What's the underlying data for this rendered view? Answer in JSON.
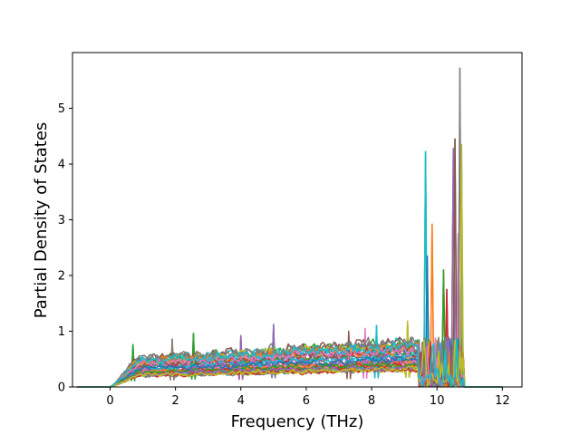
{
  "chart_data": {
    "type": "line",
    "title": "",
    "xlabel": "Frequency (THz)",
    "ylabel": "Partial Density of States",
    "xlim": [
      -1.15,
      12.6
    ],
    "ylim": [
      0,
      6.0
    ],
    "xticks": [
      0,
      2,
      4,
      6,
      8,
      10,
      12
    ],
    "yticks": [
      0,
      1,
      2,
      3,
      4,
      5
    ],
    "grid": false,
    "legend": "none",
    "series_count_estimate": 40,
    "colors": [
      "#1f77b4",
      "#ff7f0e",
      "#2ca02c",
      "#d62728",
      "#9467bd",
      "#8c564b",
      "#e377c2",
      "#7f7f7f",
      "#bcbd22",
      "#17becf"
    ],
    "x_range": [
      -1.0,
      12.0
    ],
    "nonzero_range": [
      0.0,
      10.85
    ],
    "notable_peaks": [
      {
        "x": 0.7,
        "y": 0.76,
        "color": "#2ca02c"
      },
      {
        "x": 1.9,
        "y": 0.86,
        "color": "#7f7f7f"
      },
      {
        "x": 2.55,
        "y": 0.96,
        "color": "#1f77b4"
      },
      {
        "x": 4.0,
        "y": 0.92,
        "color": "#9467bd"
      },
      {
        "x": 5.0,
        "y": 1.12,
        "color": "#2ca02c"
      },
      {
        "x": 7.3,
        "y": 1.0,
        "color": "#8c564b"
      },
      {
        "x": 7.8,
        "y": 1.05,
        "color": "#e377c2"
      },
      {
        "x": 8.15,
        "y": 1.1,
        "color": "#17becf"
      },
      {
        "x": 9.1,
        "y": 1.18,
        "color": "#e377c2"
      },
      {
        "x": 9.67,
        "y": 4.22,
        "color": "#2ca02c"
      },
      {
        "x": 9.72,
        "y": 2.35,
        "color": "#8c564b"
      },
      {
        "x": 9.85,
        "y": 2.92,
        "color": "#e377c2"
      },
      {
        "x": 10.2,
        "y": 2.1,
        "color": "#d62728"
      },
      {
        "x": 10.3,
        "y": 1.75,
        "color": "#1f77b4"
      },
      {
        "x": 10.5,
        "y": 4.28,
        "color": "#8c564b"
      },
      {
        "x": 10.55,
        "y": 4.45,
        "color": "#2ca02c"
      },
      {
        "x": 10.65,
        "y": 2.75,
        "color": "#17becf"
      },
      {
        "x": 10.72,
        "y": 5.72,
        "color": "#e377c2"
      },
      {
        "x": 10.76,
        "y": 4.35,
        "color": "#17becf"
      }
    ]
  }
}
